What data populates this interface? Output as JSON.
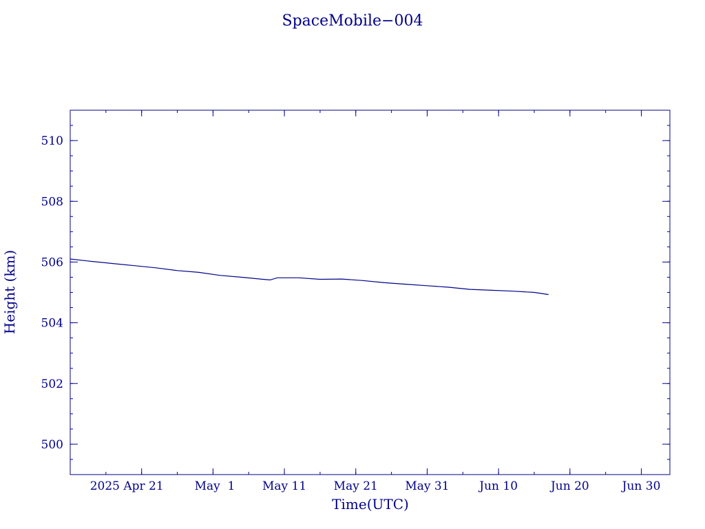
{
  "chart_data": {
    "type": "line",
    "title": "SpaceMobile−004",
    "xlabel": "Time(UTC)",
    "ylabel": "Height (km)",
    "xlim": [
      "2025-04-11",
      "2025-07-04"
    ],
    "ylim": [
      499,
      511
    ],
    "grid": false,
    "x_tick_labels": [
      {
        "date": "2025-04-21",
        "label": "2025 Apr 21"
      },
      {
        "date": "2025-05-01",
        "label": "May  1"
      },
      {
        "date": "2025-05-11",
        "label": "May 11"
      },
      {
        "date": "2025-05-21",
        "label": "May 21"
      },
      {
        "date": "2025-05-31",
        "label": "May 31"
      },
      {
        "date": "2025-06-10",
        "label": "Jun 10"
      },
      {
        "date": "2025-06-20",
        "label": "Jun 20"
      },
      {
        "date": "2025-06-30",
        "label": "Jun 30"
      }
    ],
    "y_tick_labels": [
      {
        "value": 500,
        "label": "500"
      },
      {
        "value": 502,
        "label": "502"
      },
      {
        "value": 504,
        "label": "504"
      },
      {
        "value": 506,
        "label": "506"
      },
      {
        "value": 508,
        "label": "508"
      },
      {
        "value": 510,
        "label": "510"
      }
    ],
    "series": [
      {
        "color": "#00008b",
        "x": [
          "2025-04-11",
          "2025-04-14",
          "2025-04-17",
          "2025-04-20",
          "2025-04-23",
          "2025-04-26",
          "2025-04-29",
          "2025-05-02",
          "2025-05-05",
          "2025-05-08",
          "2025-05-09",
          "2025-05-10",
          "2025-05-13",
          "2025-05-16",
          "2025-05-19",
          "2025-05-22",
          "2025-05-25",
          "2025-05-28",
          "2025-05-31",
          "2025-06-03",
          "2025-06-06",
          "2025-06-09",
          "2025-06-12",
          "2025-06-15",
          "2025-06-17"
        ],
        "values": [
          506.1,
          506.02,
          505.95,
          505.88,
          505.81,
          505.72,
          505.66,
          505.56,
          505.5,
          505.43,
          505.41,
          505.48,
          505.48,
          505.43,
          505.44,
          505.39,
          505.32,
          505.27,
          505.22,
          505.17,
          505.1,
          505.07,
          505.04,
          505.0,
          504.93
        ]
      }
    ]
  }
}
